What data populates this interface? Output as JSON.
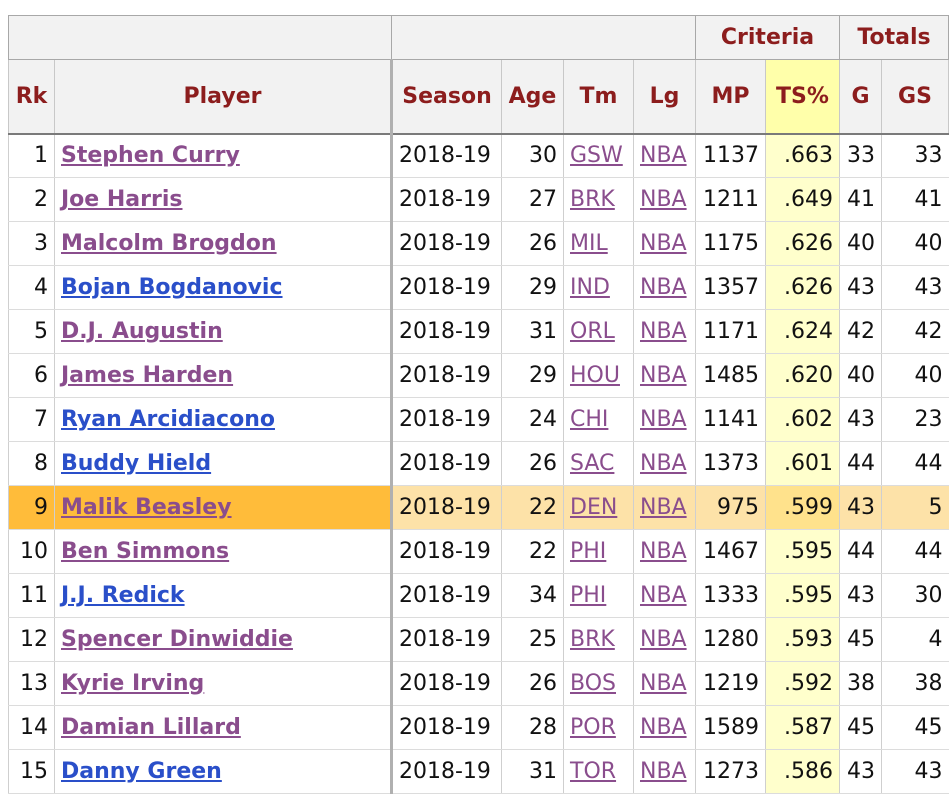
{
  "table": {
    "over_header": {
      "criteria": "Criteria",
      "totals": "Totals"
    },
    "columns": {
      "rk": "Rk",
      "player": "Player",
      "season": "Season",
      "age": "Age",
      "tm": "Tm",
      "lg": "Lg",
      "mp": "MP",
      "ts": "TS%",
      "g": "G",
      "gs": "GS"
    },
    "sorted_column": "TS%",
    "highlight_row_color": "#ffbc3a",
    "link_colors": {
      "visited": "#8a4d8d",
      "unvisited": "#2a4fc9"
    },
    "rows": [
      {
        "rk": "1",
        "player": "Stephen Curry",
        "player_link_visited": true,
        "season": "2018-19",
        "age": "30",
        "tm": "GSW",
        "lg": "NBA",
        "mp": "1137",
        "ts": ".663",
        "g": "33",
        "gs": "33"
      },
      {
        "rk": "2",
        "player": "Joe Harris",
        "player_link_visited": true,
        "season": "2018-19",
        "age": "27",
        "tm": "BRK",
        "lg": "NBA",
        "mp": "1211",
        "ts": ".649",
        "g": "41",
        "gs": "41"
      },
      {
        "rk": "3",
        "player": "Malcolm Brogdon",
        "player_link_visited": true,
        "season": "2018-19",
        "age": "26",
        "tm": "MIL",
        "lg": "NBA",
        "mp": "1175",
        "ts": ".626",
        "g": "40",
        "gs": "40"
      },
      {
        "rk": "4",
        "player": "Bojan Bogdanovic",
        "player_link_visited": false,
        "season": "2018-19",
        "age": "29",
        "tm": "IND",
        "lg": "NBA",
        "mp": "1357",
        "ts": ".626",
        "g": "43",
        "gs": "43"
      },
      {
        "rk": "5",
        "player": "D.J. Augustin",
        "player_link_visited": true,
        "season": "2018-19",
        "age": "31",
        "tm": "ORL",
        "lg": "NBA",
        "mp": "1171",
        "ts": ".624",
        "g": "42",
        "gs": "42"
      },
      {
        "rk": "6",
        "player": "James Harden",
        "player_link_visited": true,
        "season": "2018-19",
        "age": "29",
        "tm": "HOU",
        "lg": "NBA",
        "mp": "1485",
        "ts": ".620",
        "g": "40",
        "gs": "40"
      },
      {
        "rk": "7",
        "player": "Ryan Arcidiacono",
        "player_link_visited": false,
        "season": "2018-19",
        "age": "24",
        "tm": "CHI",
        "lg": "NBA",
        "mp": "1141",
        "ts": ".602",
        "g": "43",
        "gs": "23"
      },
      {
        "rk": "8",
        "player": "Buddy Hield",
        "player_link_visited": false,
        "season": "2018-19",
        "age": "26",
        "tm": "SAC",
        "lg": "NBA",
        "mp": "1373",
        "ts": ".601",
        "g": "44",
        "gs": "44"
      },
      {
        "rk": "9",
        "player": "Malik Beasley",
        "player_link_visited": true,
        "highlighted": true,
        "season": "2018-19",
        "age": "22",
        "tm": "DEN",
        "lg": "NBA",
        "mp": "975",
        "ts": ".599",
        "g": "43",
        "gs": "5"
      },
      {
        "rk": "10",
        "player": "Ben Simmons",
        "player_link_visited": true,
        "season": "2018-19",
        "age": "22",
        "tm": "PHI",
        "lg": "NBA",
        "mp": "1467",
        "ts": ".595",
        "g": "44",
        "gs": "44"
      },
      {
        "rk": "11",
        "player": "J.J. Redick",
        "player_link_visited": false,
        "season": "2018-19",
        "age": "34",
        "tm": "PHI",
        "lg": "NBA",
        "mp": "1333",
        "ts": ".595",
        "g": "43",
        "gs": "30"
      },
      {
        "rk": "12",
        "player": "Spencer Dinwiddie",
        "player_link_visited": true,
        "season": "2018-19",
        "age": "25",
        "tm": "BRK",
        "lg": "NBA",
        "mp": "1280",
        "ts": ".593",
        "g": "45",
        "gs": "4"
      },
      {
        "rk": "13",
        "player": "Kyrie Irving",
        "player_link_visited": true,
        "season": "2018-19",
        "age": "26",
        "tm": "BOS",
        "lg": "NBA",
        "mp": "1219",
        "ts": ".592",
        "g": "38",
        "gs": "38"
      },
      {
        "rk": "14",
        "player": "Damian Lillard",
        "player_link_visited": true,
        "season": "2018-19",
        "age": "28",
        "tm": "POR",
        "lg": "NBA",
        "mp": "1589",
        "ts": ".587",
        "g": "45",
        "gs": "45"
      },
      {
        "rk": "15",
        "player": "Danny Green",
        "player_link_visited": false,
        "season": "2018-19",
        "age": "31",
        "tm": "TOR",
        "lg": "NBA",
        "mp": "1273",
        "ts": ".586",
        "g": "43",
        "gs": "43"
      }
    ]
  }
}
